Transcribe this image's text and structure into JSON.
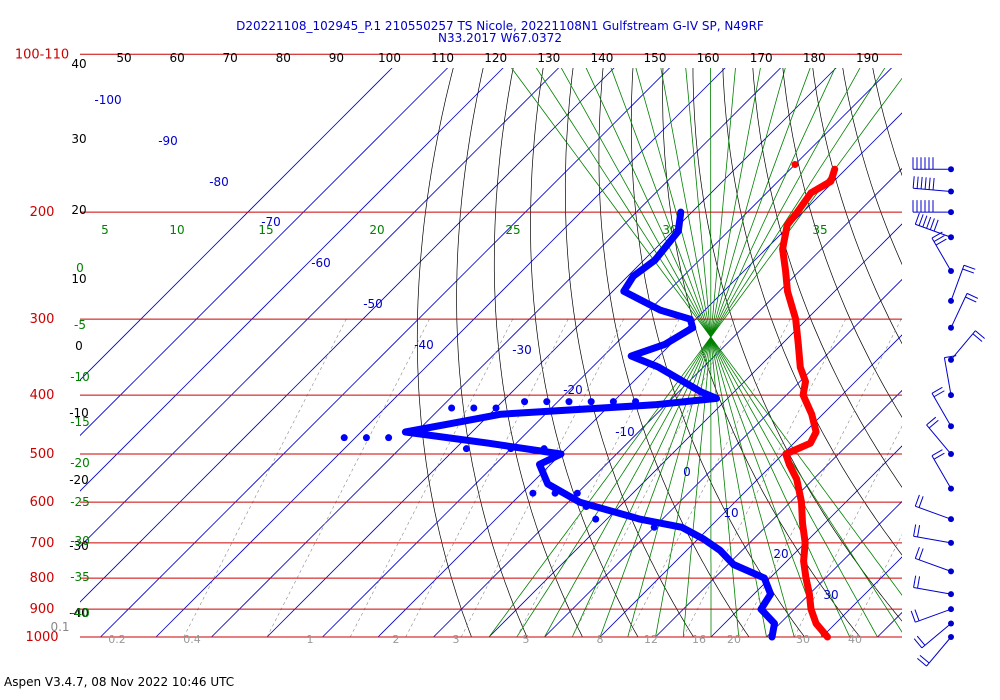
{
  "header": {
    "line1": "D20221108_102945_P.1 210550257 TS Nicole, 20221108N1 Gulfstream G-IV SP, N49RF",
    "line2": "N33.2017 W67.0372"
  },
  "footer": {
    "version": "Aspen V3.4.7, 08 Nov 2022  10:46 UTC"
  },
  "colors": {
    "isobar": "#cc0000",
    "isotherm": "#0000cc",
    "dry_adiabat": "#000000",
    "moist_adiabat": "#008000",
    "mixing_ratio": "#888888",
    "temperature": "#ff0000",
    "dewpoint": "#0000ff",
    "wind": "#0000cc"
  },
  "chart_data": {
    "type": "skew-t",
    "pressure_axis": {
      "labels": [
        "100-110",
        "200",
        "300",
        "400",
        "500",
        "600",
        "700",
        "800",
        "900",
        "1000"
      ],
      "levels_hpa": [
        110,
        200,
        300,
        400,
        500,
        600,
        700,
        800,
        900,
        1000
      ]
    },
    "left_scale_ticks": [
      "40",
      "30",
      "20",
      "10",
      "0",
      "-10",
      "-20",
      "-30",
      "-40"
    ],
    "left_green_ticks": [
      "0",
      "-5",
      "-10",
      "-15",
      "-20",
      "-25",
      "-30",
      "-35",
      "-40"
    ],
    "bottom_left_label": "0.1",
    "top_scale": [
      "50",
      "60",
      "70",
      "80",
      "90",
      "100",
      "110",
      "120",
      "130",
      "140",
      "150",
      "160",
      "170",
      "180",
      "190"
    ],
    "isotherm_labels": [
      "-100",
      "-90",
      "-80",
      "-70",
      "-60",
      "-50",
      "-40",
      "-30",
      "-20",
      "-10",
      "0",
      "10",
      "20",
      "30"
    ],
    "moist_adiabat_labels": [
      "5",
      "10",
      "15",
      "20",
      "25",
      "30",
      "35"
    ],
    "mixing_ratio_labels": [
      "0.2",
      "0.4",
      "1",
      "2",
      "3",
      "5",
      "8",
      "12",
      "16",
      "20",
      "30",
      "40"
    ],
    "temperature_profile": [
      {
        "p": 170,
        "t": -62
      },
      {
        "p": 178,
        "t": -60.5
      },
      {
        "p": 186,
        "t": -62
      },
      {
        "p": 200,
        "t": -61
      },
      {
        "p": 210,
        "t": -60.5
      },
      {
        "p": 230,
        "t": -57
      },
      {
        "p": 250,
        "t": -52.5
      },
      {
        "p": 270,
        "t": -48.5
      },
      {
        "p": 300,
        "t": -42
      },
      {
        "p": 330,
        "t": -37
      },
      {
        "p": 360,
        "t": -32.5
      },
      {
        "p": 380,
        "t": -29
      },
      {
        "p": 400,
        "t": -27
      },
      {
        "p": 430,
        "t": -22
      },
      {
        "p": 460,
        "t": -18
      },
      {
        "p": 480,
        "t": -17
      },
      {
        "p": 500,
        "t": -19.5
      },
      {
        "p": 520,
        "t": -17
      },
      {
        "p": 550,
        "t": -13
      },
      {
        "p": 600,
        "t": -8
      },
      {
        "p": 650,
        "t": -4
      },
      {
        "p": 700,
        "t": 0
      },
      {
        "p": 750,
        "t": 3
      },
      {
        "p": 800,
        "t": 6.5
      },
      {
        "p": 850,
        "t": 10
      },
      {
        "p": 900,
        "t": 13
      },
      {
        "p": 950,
        "t": 16.5
      },
      {
        "p": 1000,
        "t": 21
      }
    ],
    "temperature_isolated_point": {
      "p": 167,
      "t": -70
    },
    "dewpoint_profile": [
      {
        "p": 200,
        "td": -82
      },
      {
        "p": 215,
        "td": -79
      },
      {
        "p": 240,
        "td": -78
      },
      {
        "p": 255,
        "td": -79
      },
      {
        "p": 270,
        "td": -78
      },
      {
        "p": 290,
        "td": -68
      },
      {
        "p": 300,
        "td": -61
      },
      {
        "p": 310,
        "td": -59
      },
      {
        "p": 330,
        "td": -61
      },
      {
        "p": 345,
        "td": -65
      },
      {
        "p": 360,
        "td": -58
      },
      {
        "p": 380,
        "td": -51
      },
      {
        "p": 395,
        "td": -46
      },
      {
        "p": 405,
        "td": -42
      },
      {
        "p": 415,
        "td": -52
      },
      {
        "p": 430,
        "td": -78
      },
      {
        "p": 445,
        "td": -85
      },
      {
        "p": 460,
        "td": -92
      },
      {
        "p": 480,
        "td": -75
      },
      {
        "p": 500,
        "td": -60
      },
      {
        "p": 520,
        "td": -62
      },
      {
        "p": 560,
        "td": -57
      },
      {
        "p": 600,
        "td": -48
      },
      {
        "p": 640,
        "td": -34
      },
      {
        "p": 660,
        "td": -25
      },
      {
        "p": 690,
        "td": -19
      },
      {
        "p": 720,
        "td": -14
      },
      {
        "p": 760,
        "td": -9
      },
      {
        "p": 800,
        "td": -1
      },
      {
        "p": 850,
        "td": 3
      },
      {
        "p": 900,
        "td": 4
      },
      {
        "p": 950,
        "td": 9
      },
      {
        "p": 1000,
        "td": 11
      }
    ],
    "dewpoint_scatter": [
      {
        "p": 410,
        "td": -76
      },
      {
        "p": 410,
        "td": -72
      },
      {
        "p": 410,
        "td": -68
      },
      {
        "p": 410,
        "td": -64
      },
      {
        "p": 410,
        "td": -60
      },
      {
        "p": 410,
        "td": -56
      },
      {
        "p": 420,
        "td": -80
      },
      {
        "p": 420,
        "td": -84
      },
      {
        "p": 420,
        "td": -88
      },
      {
        "p": 470,
        "td": -94
      },
      {
        "p": 470,
        "td": -98
      },
      {
        "p": 470,
        "td": -102
      },
      {
        "p": 490,
        "td": -78
      },
      {
        "p": 490,
        "td": -70
      },
      {
        "p": 490,
        "td": -64
      },
      {
        "p": 580,
        "td": -58
      },
      {
        "p": 580,
        "td": -54
      },
      {
        "p": 580,
        "td": -50
      },
      {
        "p": 610,
        "td": -46
      },
      {
        "p": 640,
        "td": -42
      },
      {
        "p": 660,
        "td": -30
      }
    ],
    "wind_barbs": [
      {
        "p": 170,
        "dir": 270,
        "spd": 65
      },
      {
        "p": 185,
        "dir": 275,
        "spd": 60
      },
      {
        "p": 200,
        "dir": 270,
        "spd": 55
      },
      {
        "p": 220,
        "dir": 290,
        "spd": 55
      },
      {
        "p": 250,
        "dir": 330,
        "spd": 30
      },
      {
        "p": 280,
        "dir": 20,
        "spd": 20
      },
      {
        "p": 310,
        "dir": 25,
        "spd": 15
      },
      {
        "p": 350,
        "dir": 40,
        "spd": 15
      },
      {
        "p": 400,
        "dir": 350,
        "spd": 10
      },
      {
        "p": 450,
        "dir": 330,
        "spd": 15
      },
      {
        "p": 500,
        "dir": 320,
        "spd": 15
      },
      {
        "p": 570,
        "dir": 330,
        "spd": 15
      },
      {
        "p": 640,
        "dir": 290,
        "spd": 15
      },
      {
        "p": 700,
        "dir": 280,
        "spd": 20
      },
      {
        "p": 780,
        "dir": 290,
        "spd": 20
      },
      {
        "p": 850,
        "dir": 280,
        "spd": 20
      },
      {
        "p": 900,
        "dir": 250,
        "spd": 20
      },
      {
        "p": 950,
        "dir": 230,
        "spd": 20
      },
      {
        "p": 1000,
        "dir": 220,
        "spd": 15
      }
    ]
  }
}
